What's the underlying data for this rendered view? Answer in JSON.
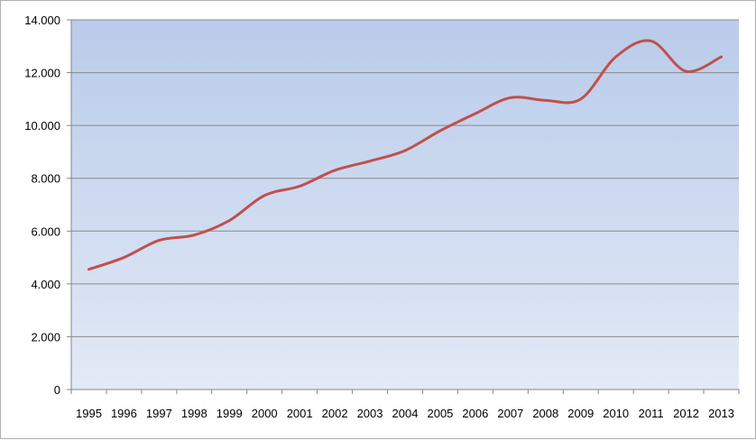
{
  "chart_data": {
    "type": "line",
    "title": "",
    "xlabel": "",
    "ylabel": "",
    "categories": [
      "1995",
      "1996",
      "1997",
      "1998",
      "1999",
      "2000",
      "2001",
      "2002",
      "2003",
      "2004",
      "2005",
      "2006",
      "2007",
      "2008",
      "2009",
      "2010",
      "2011",
      "2012",
      "2013"
    ],
    "series": [
      {
        "values": [
          4550,
          5000,
          5650,
          5850,
          6400,
          7350,
          7700,
          8300,
          8650,
          9050,
          9800,
          10450,
          11050,
          10950,
          11000,
          12600,
          13200,
          12050,
          12600
        ],
        "color": "#c0504d"
      }
    ],
    "y_ticks": [
      "0",
      "2.000",
      "4.000",
      "6.000",
      "8.000",
      "10.000",
      "12.000",
      "14.000"
    ],
    "ylim": [
      0,
      14000
    ],
    "grid": true,
    "legend": "none",
    "plot_background_top": "#b9cbea",
    "plot_background_bottom": "#e3eaf6",
    "gridline_color": "#8a8a8a"
  }
}
